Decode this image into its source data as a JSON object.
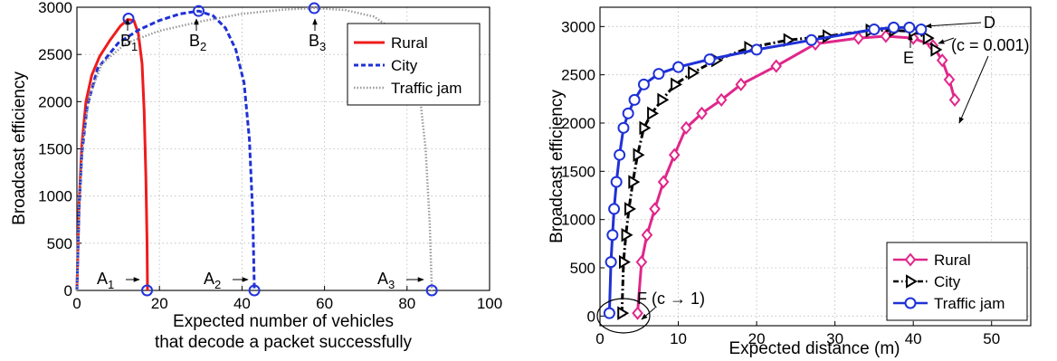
{
  "chart_data": [
    {
      "type": "line",
      "xlabel": [
        "Expected number of vehicles",
        "that decode a packet successfully"
      ],
      "ylabel": "Broadcast efficiency",
      "xlim": [
        0,
        100
      ],
      "ylim": [
        0,
        3000
      ],
      "xticks": [
        0,
        20,
        40,
        60,
        80,
        100
      ],
      "yticks": [
        0,
        500,
        1000,
        1500,
        2000,
        2500,
        3000
      ],
      "grid": true,
      "legend_position": "top-right",
      "colors": {
        "Rural": "#ee1c1c",
        "City": "#1f31d6",
        "Traffic jam": "#9a9a9a",
        "markers": "#2233dd"
      },
      "series": [
        {
          "name": "Rural",
          "style": "solid",
          "x": [
            0,
            0.5,
            1.2,
            2.2,
            3.6,
            5.5,
            8,
            10.5,
            12.3,
            13.8,
            14.9,
            15.8,
            16.3,
            16.7,
            17,
            17.1
          ],
          "y": [
            0,
            900,
            1550,
            2000,
            2280,
            2480,
            2650,
            2800,
            2870,
            2860,
            2720,
            2400,
            1900,
            1200,
            500,
            0
          ]
        },
        {
          "name": "City",
          "style": "dashed",
          "x": [
            0,
            0.5,
            1.2,
            2.5,
            5,
            10,
            15,
            20,
            25,
            29.5,
            33,
            36,
            38.5,
            40.5,
            41.8,
            42.6,
            43
          ],
          "y": [
            0,
            850,
            1450,
            1950,
            2350,
            2620,
            2760,
            2860,
            2930,
            2960,
            2910,
            2780,
            2550,
            2200,
            1600,
            800,
            0
          ]
        },
        {
          "name": "Traffic jam",
          "style": "dotted",
          "x": [
            0,
            0.5,
            1.5,
            3,
            6,
            12,
            20,
            30,
            40,
            50,
            57.5,
            65,
            72,
            77,
            80.5,
            83,
            84.5,
            85.5,
            86
          ],
          "y": [
            0,
            900,
            1600,
            2050,
            2400,
            2620,
            2750,
            2850,
            2930,
            2975,
            2990,
            2970,
            2900,
            2750,
            2500,
            2100,
            1500,
            700,
            0
          ]
        }
      ],
      "points": [
        {
          "x": 12.5,
          "y": 2880,
          "label": "B",
          "sub": "1"
        },
        {
          "x": 29.5,
          "y": 2960,
          "label": "B",
          "sub": "2"
        },
        {
          "x": 57.5,
          "y": 2990,
          "label": "B",
          "sub": "3"
        },
        {
          "x": 17,
          "y": 0,
          "label": "A",
          "sub": "1"
        },
        {
          "x": 43,
          "y": 0,
          "label": "A",
          "sub": "2"
        },
        {
          "x": 86,
          "y": 0,
          "label": "A",
          "sub": "3"
        }
      ]
    },
    {
      "type": "line",
      "xlabel": "Expected distance (m)",
      "ylabel": "Broadcast efficiency",
      "xlim": [
        0,
        55
      ],
      "ylim": [
        -100,
        3200
      ],
      "xticks": [
        0,
        10,
        20,
        30,
        40,
        50
      ],
      "yticks": [
        0,
        500,
        1000,
        1500,
        2000,
        2500,
        3000
      ],
      "grid": true,
      "legend_position": "bottom-right",
      "colors": {
        "Rural": "#e0268a",
        "City": "#000000",
        "Traffic jam": "#1f31d6"
      },
      "series": [
        {
          "name": "Rural",
          "style": "solid",
          "marker": "diamond",
          "x": [
            4.8,
            5.3,
            6,
            7,
            8.1,
            9.5,
            11,
            13,
            15.5,
            18,
            22.5,
            27.5,
            33,
            36.5,
            40,
            42.5,
            43.7,
            44.6,
            45.3
          ],
          "y": [
            30,
            560,
            840,
            1110,
            1390,
            1670,
            1950,
            2100,
            2240,
            2400,
            2590,
            2820,
            2880,
            2900,
            2880,
            2800,
            2650,
            2450,
            2240
          ]
        },
        {
          "name": "City",
          "style": "dashdot",
          "marker": "triangle-right",
          "x": [
            2.8,
            3,
            3.3,
            3.7,
            4.2,
            4.8,
            5.6,
            6.6,
            7.9,
            9.6,
            11.8,
            14.8,
            19,
            24,
            29,
            34.5,
            37.5,
            40,
            41.8,
            42.8
          ],
          "y": [
            30,
            560,
            840,
            1110,
            1390,
            1670,
            1950,
            2100,
            2240,
            2400,
            2520,
            2650,
            2780,
            2860,
            2900,
            2960,
            2960,
            2950,
            2880,
            2760
          ]
        },
        {
          "name": "Traffic jam",
          "style": "solid",
          "marker": "circle",
          "x": [
            1.2,
            1.4,
            1.6,
            1.8,
            2.1,
            2.5,
            3,
            3.6,
            4.4,
            5.6,
            7.5,
            10,
            14,
            20,
            27,
            35,
            37.5,
            39.5,
            41
          ],
          "y": [
            30,
            560,
            840,
            1110,
            1390,
            1670,
            1950,
            2100,
            2240,
            2400,
            2510,
            2580,
            2660,
            2760,
            2860,
            2970,
            2990,
            2990,
            2970
          ]
        }
      ],
      "annotations": [
        {
          "text": "D"
        },
        {
          "text": "(c = 0.001)"
        },
        {
          "text": "E"
        },
        {
          "text": "F (c → 1)"
        }
      ]
    }
  ]
}
